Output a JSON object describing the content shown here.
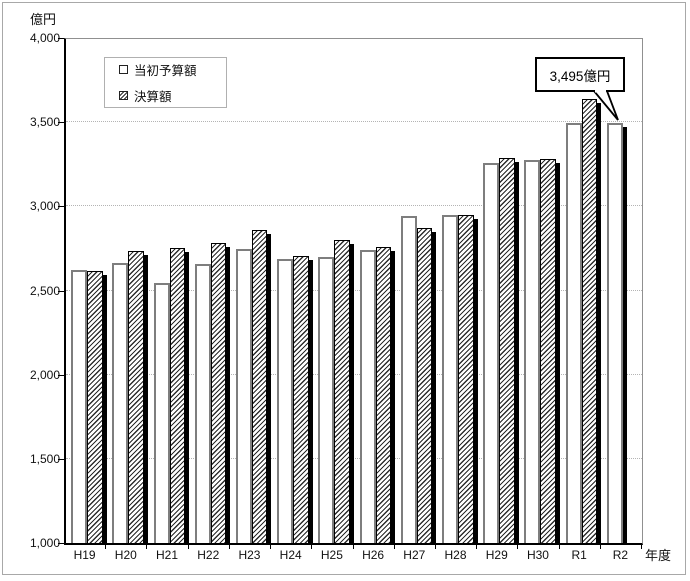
{
  "axis_units": {
    "y": "億円",
    "x": "年度"
  },
  "legend": {
    "series1_label": "当初予算額",
    "series2_label": "決算額"
  },
  "annotation": {
    "text": "3,495億円",
    "points_to": "R2"
  },
  "chart_data": {
    "type": "bar",
    "title": "",
    "ylabel": "億円",
    "xlabel": "年度",
    "ylim": [
      1000,
      4000
    ],
    "grid": "horizontal dotted lines every 500",
    "legend_position": "top-left inside plot area",
    "categories": [
      "H19",
      "H20",
      "H21",
      "H22",
      "H23",
      "H24",
      "H25",
      "H26",
      "H27",
      "H28",
      "H29",
      "H30",
      "R1",
      "R2"
    ],
    "series": [
      {
        "name": "当初予算額",
        "style": "white",
        "values": [
          2620,
          2665,
          2545,
          2660,
          2745,
          2690,
          2700,
          2740,
          2940,
          2950,
          3255,
          3275,
          3495,
          3495
        ]
      },
      {
        "name": "決算額",
        "style": "hatched",
        "values": [
          2615,
          2735,
          2750,
          2780,
          2860,
          2705,
          2800,
          2760,
          2870,
          2950,
          3285,
          3280,
          3635,
          null
        ]
      }
    ],
    "yticks": [
      {
        "value": 4000,
        "label": "4,000"
      },
      {
        "value": 3500,
        "label": "3,500"
      },
      {
        "value": 3000,
        "label": "3,000"
      },
      {
        "value": 2500,
        "label": "2,500"
      },
      {
        "value": 2000,
        "label": "2,000"
      },
      {
        "value": 1500,
        "label": "1,500"
      },
      {
        "value": 1000,
        "label": "1,000"
      }
    ],
    "gridline_values": [
      3500,
      3000,
      2500,
      2000,
      1500
    ],
    "annotation_value": "3,495億円"
  },
  "colors": {
    "background": "#ffffff",
    "axis": "#000000",
    "plot_border": "#909090",
    "gridline": "#b4b4b4",
    "budget_bar_border": "#7e7e7e",
    "hatch": "#2b2b2b",
    "shadow": "#000000",
    "legend_border": "#b0b0b0",
    "text": "#111111"
  }
}
